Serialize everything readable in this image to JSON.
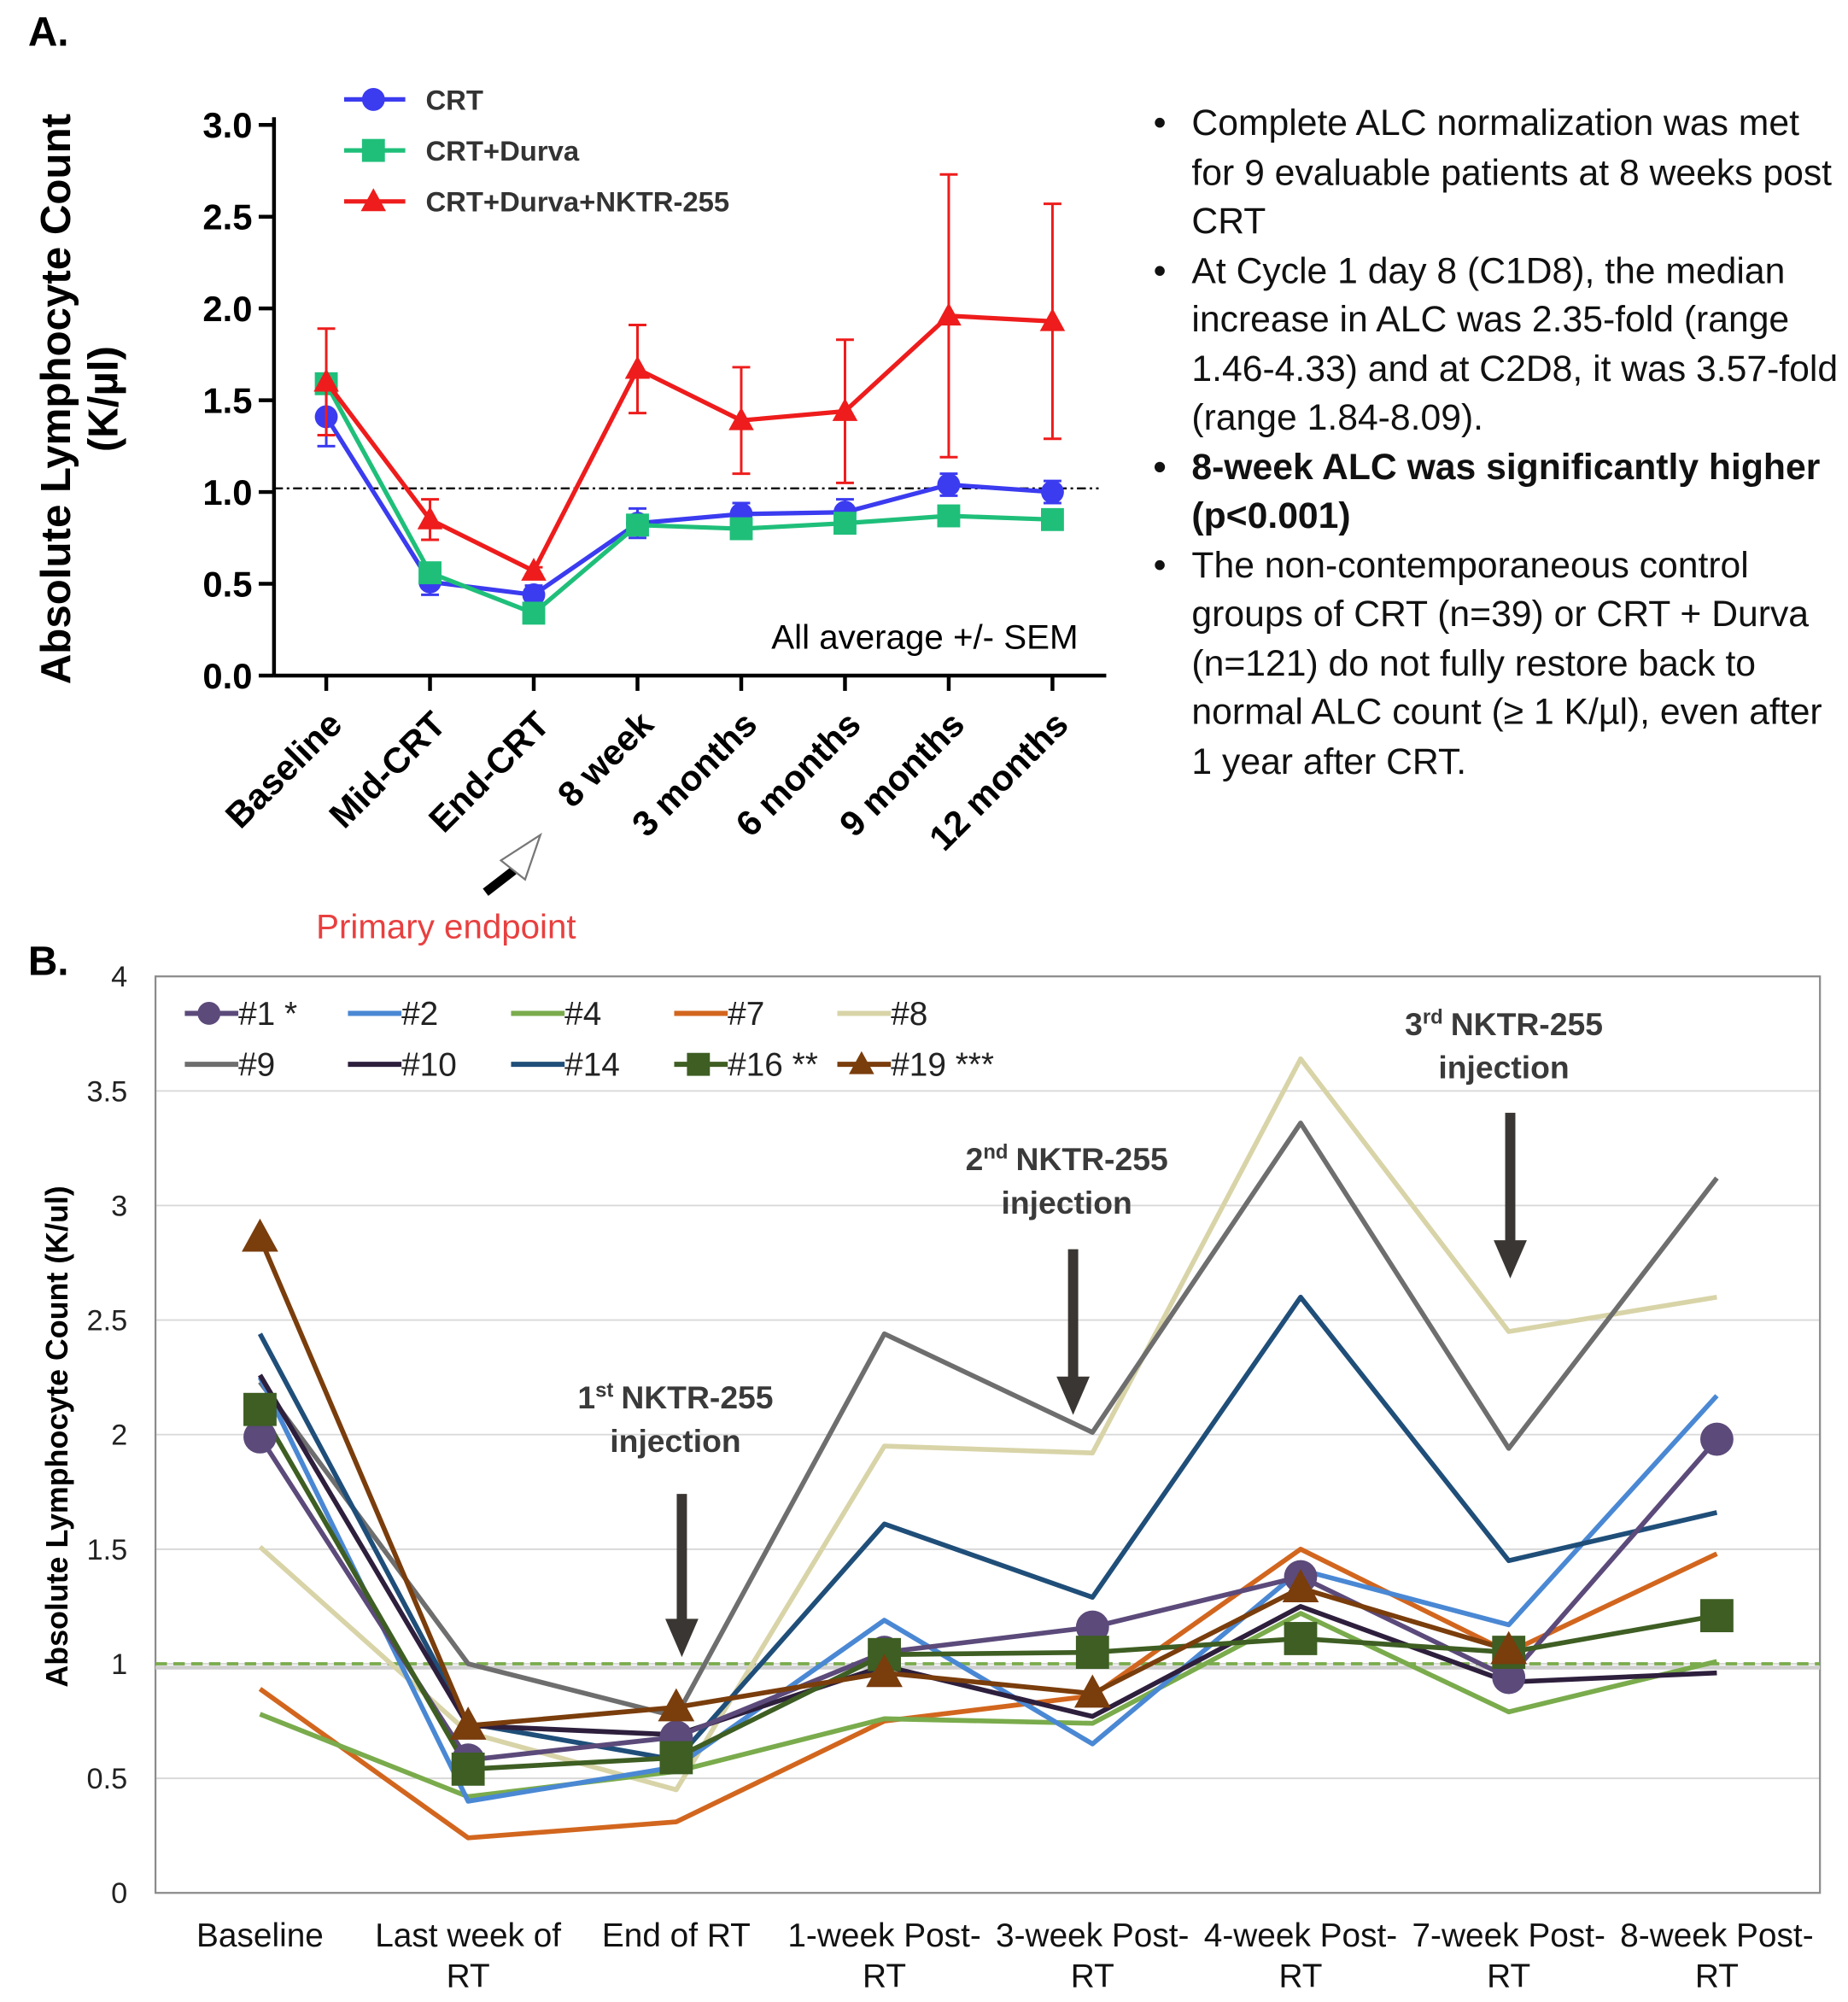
{
  "chart_data": [
    {
      "type": "line",
      "panel_label": "A.",
      "y_label": [
        "Absolute Lymphocyte Count",
        "(K/µl)"
      ],
      "categories": [
        "Baseline",
        "Mid-CRT",
        "End-CRT",
        "8 week",
        "3 months",
        "6 months",
        "9 months",
        "12 months"
      ],
      "series": [
        {
          "name": "CRT",
          "color": "#3b3bf0",
          "marker": "circle",
          "values": [
            1.41,
            0.51,
            0.44,
            0.83,
            0.88,
            0.89,
            1.04,
            1.0
          ],
          "errors": [
            0.16,
            0.07,
            0.05,
            0.08,
            0.06,
            0.07,
            0.06,
            0.06
          ]
        },
        {
          "name": "CRT+Durva",
          "color": "#1fbf7a",
          "marker": "square",
          "values": [
            1.59,
            0.56,
            0.34,
            0.82,
            0.8,
            0.83,
            0.87,
            0.85
          ],
          "errors": [
            0.05,
            0.03,
            0.02,
            0.03,
            0.03,
            0.03,
            0.03,
            0.03
          ]
        },
        {
          "name": "CRT+Durva+NKTR-255",
          "color": "#ee1c1c",
          "marker": "triangle",
          "values": [
            1.6,
            0.85,
            0.57,
            1.67,
            1.39,
            1.44,
            1.96,
            1.93
          ],
          "errors": [
            0.29,
            0.11,
            0.02,
            0.24,
            0.29,
            0.39,
            0.77,
            0.64
          ]
        }
      ],
      "ylim": [
        0,
        3
      ],
      "yticks": [
        {
          "value": 0,
          "label": "0.0"
        },
        0.5,
        {
          "value": 1,
          "label": "1.0"
        },
        1.5,
        {
          "value": 2,
          "label": "2.0"
        },
        2.5,
        {
          "value": 3,
          "label": "3.0"
        }
      ],
      "reference_line": 1.02,
      "note": "All average +/- SEM",
      "annotation": "Primary endpoint"
    },
    {
      "type": "line",
      "panel_label": "B.",
      "y_label": "Absolute Lymphocyte Count (K/ul)",
      "categories": [
        "Baseline",
        "Last week of RT",
        "End of RT",
        "1-week Post-RT",
        "3-week Post-RT",
        "4-week Post-RT",
        "7-week Post-RT",
        "8-week Post-RT"
      ],
      "series": [
        {
          "name": "#1 *",
          "color": "#5b4a7a",
          "marker": "circle",
          "values": [
            1.99,
            0.58,
            0.68,
            1.05,
            1.16,
            1.38,
            0.94,
            1.98
          ]
        },
        {
          "name": "#2",
          "color": "#4a88d4",
          "values": [
            2.25,
            0.4,
            0.55,
            1.19,
            0.65,
            1.41,
            1.17,
            2.17
          ]
        },
        {
          "name": "#4",
          "color": "#7aab4c",
          "values": [
            0.78,
            0.42,
            0.53,
            0.76,
            0.74,
            1.22,
            0.79,
            1.01
          ]
        },
        {
          "name": "#7",
          "color": "#d2661e",
          "values": [
            0.89,
            0.24,
            0.31,
            0.75,
            0.86,
            1.5,
            1.05,
            1.48
          ]
        },
        {
          "name": "#8",
          "color": "#d8d4a8",
          "values": [
            1.51,
            0.7,
            0.45,
            1.95,
            1.92,
            3.64,
            2.45,
            2.6
          ]
        },
        {
          "name": "#9",
          "color": "#6e6e6e",
          "values": [
            2.23,
            1.0,
            0.77,
            2.44,
            2.01,
            3.36,
            1.94,
            3.12
          ]
        },
        {
          "name": "#10",
          "color": "#2e1f3d",
          "values": [
            2.26,
            0.73,
            0.69,
            0.99,
            0.77,
            1.25,
            0.92,
            0.96
          ]
        },
        {
          "name": "#14",
          "color": "#1f4e79",
          "values": [
            2.44,
            0.74,
            0.58,
            1.61,
            1.29,
            2.6,
            1.45,
            1.66
          ]
        },
        {
          "name": "#16 **",
          "color": "#3e5e23",
          "marker": "square",
          "values": [
            2.11,
            0.54,
            0.59,
            1.04,
            1.05,
            1.11,
            1.05,
            1.21
          ]
        },
        {
          "name": "#19 ***",
          "color": "#7a3d0c",
          "marker": "triangle",
          "values": [
            2.86,
            0.73,
            0.81,
            0.96,
            0.87,
            1.33,
            1.06,
            null
          ]
        }
      ],
      "ylim": [
        0,
        4
      ],
      "yticks": [
        0,
        0.5,
        1,
        1.5,
        2,
        2.5,
        3,
        3.5,
        4
      ],
      "grid": true,
      "reference_line": 1,
      "annotations": [
        {
          "ordinal": "1",
          "suffix": "st",
          "text": "NKTR-255",
          "line2": "injection"
        },
        {
          "ordinal": "2",
          "suffix": "nd",
          "text": "NKTR-255",
          "line2": "injection"
        },
        {
          "ordinal": "3",
          "suffix": "rd",
          "text": "NKTR-255",
          "line2": "injection"
        }
      ]
    }
  ],
  "notes": {
    "bullets": [
      {
        "text": "Complete ALC normalization was met for 9 evaluable patients at 8 weeks post CRT",
        "bold": false
      },
      {
        "text": "At Cycle 1 day 8 (C1D8), the median increase in ALC was 2.35-fold (range 1.46-4.33) and at C2D8, it was 3.57-fold (range 1.84-8.09).",
        "bold": false
      },
      {
        "text": "8-week ALC was significantly higher (p<0.001)",
        "bold": true
      },
      {
        "text": "The non-contemporaneous control groups of CRT (n=39) or CRT + Durva (n=121) do not fully restore back to normal ALC count (≥ 1 K/µl), even after 1 year after CRT.",
        "bold": false
      }
    ]
  }
}
